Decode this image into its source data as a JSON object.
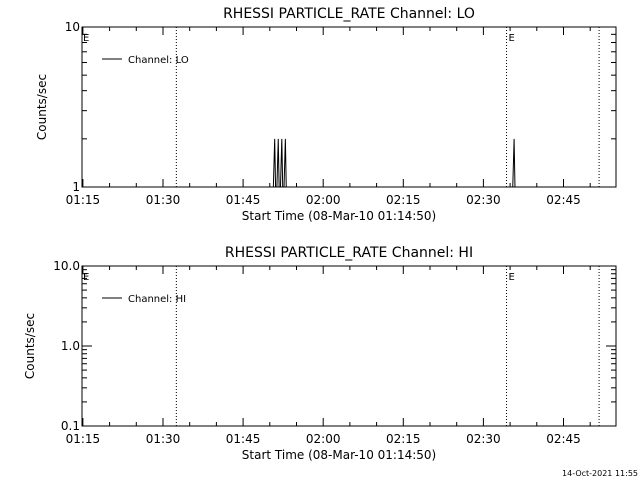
{
  "footer": {
    "timestamp": "14-Oct-2021 11:55"
  },
  "chart_data": [
    {
      "type": "line",
      "title": "RHESSI PARTICLE_RATE Channel: LO",
      "xlabel": "Start Time (08-Mar-10 01:14:50)",
      "ylabel": "Counts/sec",
      "y_scale": "log",
      "xlim": [
        "01:14:50",
        "02:54:50"
      ],
      "ylim": [
        1,
        10
      ],
      "x_ticks": [
        "01:15",
        "01:30",
        "01:45",
        "02:00",
        "02:15",
        "02:30",
        "02:45"
      ],
      "y_ticks": [
        {
          "value": 1,
          "label": "1"
        },
        {
          "value": 10,
          "label": "10"
        }
      ],
      "legend": {
        "position": "top-left",
        "entries": [
          {
            "label": "Channel: LO"
          }
        ]
      },
      "vlines": [
        {
          "x": "01:32:30",
          "style": "dotted"
        },
        {
          "x": "02:34:20",
          "label": "E",
          "style": "dotted"
        },
        {
          "x": "02:51:40",
          "style": "dotted"
        }
      ],
      "start_marker": {
        "label": "E"
      },
      "series": [
        {
          "name": "Channel: LO",
          "x": [
            "01:50:40",
            "01:50:55",
            "01:51:05",
            "01:51:20",
            "01:51:35",
            "01:51:45",
            "01:52:00",
            "01:52:15",
            "01:52:25",
            "01:52:40",
            "01:52:55",
            "01:53:05",
            "01:53:20",
            "02:35:30",
            "02:35:45",
            "02:35:55",
            "02:36:10"
          ],
          "y": [
            1,
            2,
            1,
            1,
            2,
            1,
            1,
            2,
            1,
            1,
            2,
            1,
            1,
            1,
            2,
            1,
            1
          ]
        }
      ]
    },
    {
      "type": "line",
      "title": "RHESSI PARTICLE_RATE Channel: HI",
      "xlabel": "Start Time (08-Mar-10 01:14:50)",
      "ylabel": "Counts/sec",
      "y_scale": "log",
      "xlim": [
        "01:14:50",
        "02:54:50"
      ],
      "ylim": [
        0.1,
        10
      ],
      "x_ticks": [
        "01:15",
        "01:30",
        "01:45",
        "02:00",
        "02:15",
        "02:30",
        "02:45"
      ],
      "y_ticks": [
        {
          "value": 0.1,
          "label": "0.1"
        },
        {
          "value": 1,
          "label": "1.0"
        },
        {
          "value": 10,
          "label": "10.0"
        }
      ],
      "legend": {
        "position": "top-left",
        "entries": [
          {
            "label": "Channel: HI"
          }
        ]
      },
      "vlines": [
        {
          "x": "01:32:30",
          "style": "dotted"
        },
        {
          "x": "02:34:20",
          "label": "E",
          "style": "dotted"
        },
        {
          "x": "02:51:40",
          "style": "dotted"
        }
      ],
      "start_marker": {
        "label": "E"
      },
      "series": [
        {
          "name": "Channel: HI",
          "x": [],
          "y": []
        }
      ]
    }
  ]
}
